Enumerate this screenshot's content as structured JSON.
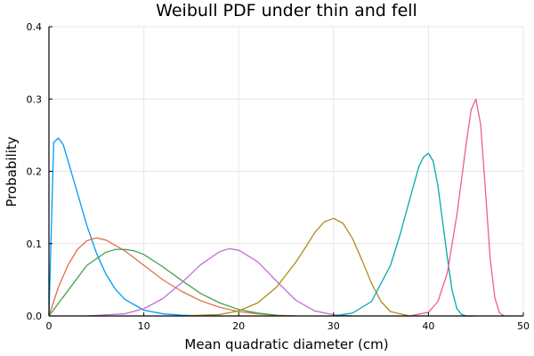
{
  "chart_data": {
    "type": "line",
    "title": "Weibull PDF under thin and fell",
    "xlabel": "Mean quadratic diameter (cm)",
    "ylabel": "Probability",
    "xlim": [
      0,
      50
    ],
    "ylim": [
      0,
      0.4
    ],
    "xticks": [
      0,
      10,
      20,
      30,
      40,
      50
    ],
    "yticks": [
      0.0,
      0.1,
      0.2,
      0.3,
      0.4
    ],
    "ytick_labels": [
      "0.0",
      "0.1",
      "0.2",
      "0.3",
      "0.4"
    ],
    "grid": true,
    "legend": false,
    "series": [
      {
        "color": "#009AFA",
        "x": [
          0,
          0.5,
          1,
          1.5,
          2,
          3,
          4,
          5,
          6,
          7,
          8,
          10,
          12,
          14,
          16,
          18
        ],
        "values": [
          0.0,
          0.24,
          0.246,
          0.237,
          0.215,
          0.17,
          0.125,
          0.087,
          0.058,
          0.037,
          0.023,
          0.008,
          0.003,
          0.001,
          0.0003,
          0.0
        ]
      },
      {
        "color": "#E36F47",
        "x": [
          0,
          1,
          2,
          3,
          4,
          5,
          6,
          8,
          10,
          12,
          14,
          16,
          18,
          20,
          22,
          24,
          26
        ],
        "values": [
          0.0,
          0.04,
          0.07,
          0.092,
          0.104,
          0.108,
          0.105,
          0.09,
          0.07,
          0.05,
          0.034,
          0.021,
          0.012,
          0.006,
          0.003,
          0.001,
          0.0
        ]
      },
      {
        "color": "#3EA44E",
        "x": [
          0,
          2,
          4,
          6,
          7,
          8,
          9,
          10,
          12,
          14,
          16,
          18,
          20,
          22,
          24
        ],
        "values": [
          0.0,
          0.035,
          0.07,
          0.088,
          0.092,
          0.092,
          0.09,
          0.085,
          0.068,
          0.049,
          0.031,
          0.018,
          0.009,
          0.004,
          0.001
        ]
      },
      {
        "color": "#C271D2",
        "x": [
          4,
          8,
          10,
          12,
          14,
          16,
          18,
          19,
          20,
          22,
          24,
          26,
          28,
          30,
          32
        ],
        "values": [
          0.0,
          0.003,
          0.01,
          0.024,
          0.046,
          0.071,
          0.089,
          0.093,
          0.091,
          0.075,
          0.048,
          0.022,
          0.007,
          0.0015,
          0.0
        ]
      },
      {
        "color": "#AC8D18",
        "x": [
          14,
          18,
          20,
          22,
          24,
          26,
          27,
          28,
          29,
          30,
          31,
          32,
          33,
          34,
          35,
          36,
          38
        ],
        "values": [
          0.0,
          0.002,
          0.007,
          0.018,
          0.04,
          0.074,
          0.094,
          0.115,
          0.13,
          0.135,
          0.128,
          0.107,
          0.077,
          0.045,
          0.02,
          0.006,
          0.0
        ]
      },
      {
        "color": "#00A9AD",
        "x": [
          30,
          32,
          34,
          36,
          37,
          38,
          39,
          39.5,
          40,
          40.5,
          41,
          42,
          42.5,
          43,
          43.5,
          44,
          45
        ],
        "values": [
          0.0,
          0.004,
          0.02,
          0.07,
          0.112,
          0.16,
          0.207,
          0.22,
          0.225,
          0.214,
          0.18,
          0.08,
          0.035,
          0.01,
          0.002,
          0.0,
          0.0
        ]
      },
      {
        "color": "#ED5D92",
        "x": [
          38,
          40,
          41,
          42,
          43,
          43.5,
          44,
          44.5,
          45,
          45.5,
          46,
          46.5,
          47,
          47.5,
          48
        ],
        "values": [
          0.0,
          0.005,
          0.02,
          0.06,
          0.14,
          0.19,
          0.24,
          0.285,
          0.3,
          0.265,
          0.175,
          0.08,
          0.025,
          0.004,
          0.0
        ]
      }
    ]
  }
}
